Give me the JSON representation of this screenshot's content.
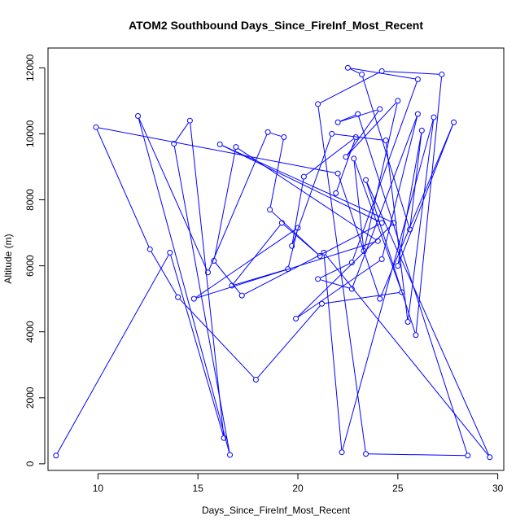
{
  "chart_data": {
    "type": "line",
    "title": "ATOM2 Southbound Days_Since_FireInf_Most_Recent",
    "xlabel": "Days_Since_FireInf_Most_Recent",
    "ylabel": "Altitude (m)",
    "xlim": [
      7.5,
      30.3
    ],
    "ylim": [
      -200,
      12600
    ],
    "xticks": [
      10,
      15,
      20,
      25,
      30
    ],
    "yticks": [
      0,
      2000,
      4000,
      6000,
      8000,
      10000,
      12000
    ],
    "grid": false,
    "legend": "none",
    "marker": "open-circle",
    "color": "#0000ff",
    "series": [
      {
        "x": [
          7.9,
          13.6,
          16.3,
          14.6,
          13.8,
          16.6,
          12.0,
          15.5,
          18.5,
          19.3,
          18.6,
          21.1,
          19.2,
          16.7,
          19.5,
          20.0,
          14.8,
          24.0,
          16.9,
          15.8,
          17.2,
          24.2,
          16.1,
          24.8,
          19.9,
          24.2,
          26.0,
          22.7,
          21.0,
          22.7,
          26.0,
          22.5,
          23.2,
          25.6,
          26.2,
          25.0,
          27.8,
          24.1,
          22.0,
          9.9,
          12.6,
          14.0,
          17.9,
          21.2,
          25.2,
          22.8,
          23.3,
          25.0,
          22.4,
          24.1,
          22.0,
          23.0,
          28.5,
          23.4,
          21.0,
          24.2,
          27.2,
          25.9,
          23.4,
          29.6,
          21.3,
          22.2,
          26.8,
          25.5,
          24.4,
          21.7,
          19.7,
          20.3,
          22.9,
          21.9
        ],
        "y": [
          250,
          6400,
          780,
          10400,
          9700,
          270,
          10540,
          5800,
          10050,
          9900,
          7700,
          6300,
          7300,
          5400,
          5900,
          7150,
          5000,
          6750,
          9600,
          6150,
          5100,
          7300,
          9680,
          7300,
          4400,
          6200,
          10600,
          5300,
          5600,
          6100,
          11650,
          12000,
          11800,
          7100,
          10100,
          6000,
          10350,
          5000,
          8800,
          10200,
          6500,
          5050,
          2550,
          4850,
          5200,
          9250,
          6450,
          11000,
          9300,
          10750,
          10350,
          10600,
          250,
          300,
          10900,
          11900,
          11800,
          3900,
          8600,
          200,
          6400,
          350,
          10500,
          4300,
          9800,
          10000,
          6600,
          8700,
          9900,
          8200
        ]
      }
    ]
  }
}
